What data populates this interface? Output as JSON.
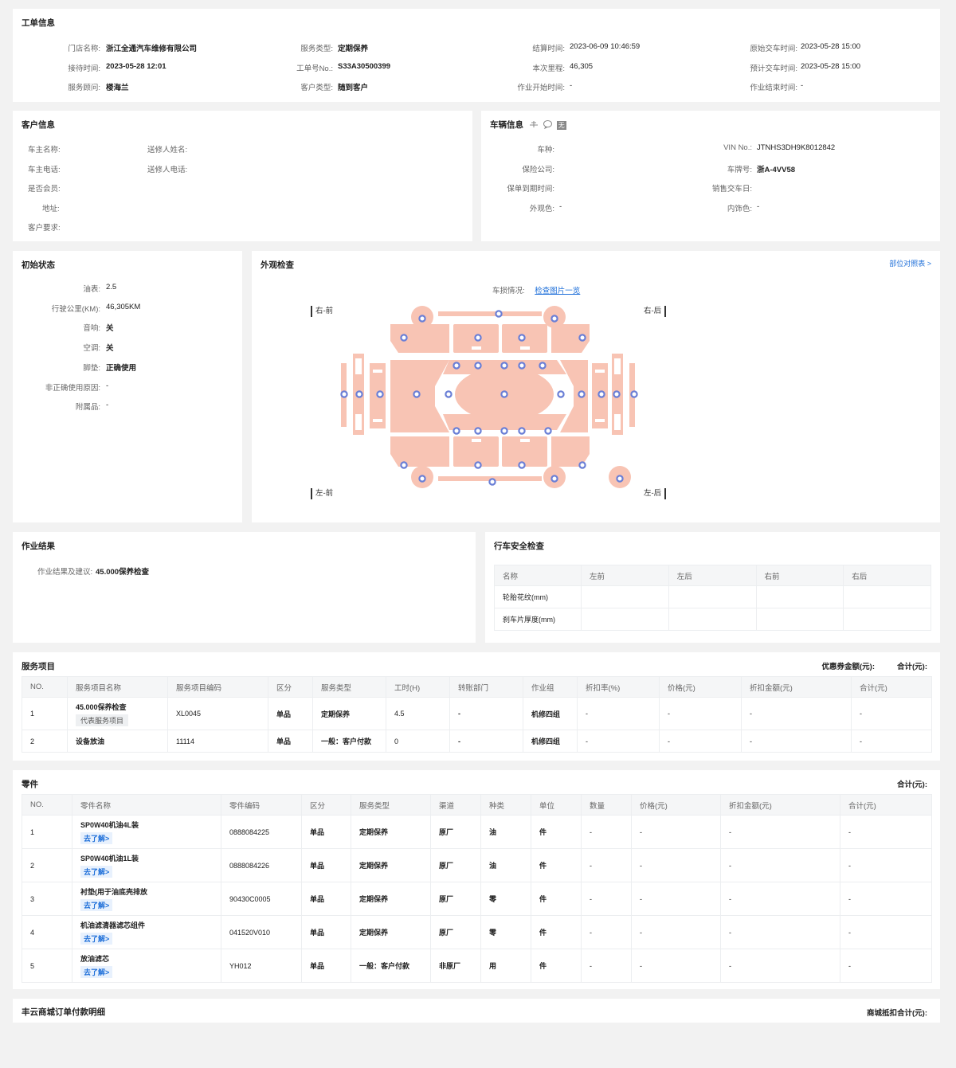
{
  "work_order": {
    "title": "工单信息",
    "fields": [
      {
        "label": "门店名称:",
        "value": "浙江全通汽车维修有限公司"
      },
      {
        "label": "服务类型:",
        "value": "定期保养"
      },
      {
        "label": "结算时间:",
        "value": "2023-06-09 10:46:59"
      },
      {
        "label": "原始交车时间:",
        "value": "2023-05-28 15:00"
      },
      {
        "label": "接待时间:",
        "value": "2023-05-28 12:01"
      },
      {
        "label": "工单号No.:",
        "value": "S33A30500399"
      },
      {
        "label": "本次里程:",
        "value": "46,305"
      },
      {
        "label": "预计交车时间:",
        "value": "2023-05-28 15:00"
      },
      {
        "label": "服务顾问:",
        "value": "楼海兰"
      },
      {
        "label": "客户类型:",
        "value": "随到客户"
      },
      {
        "label": "作业开始时间:",
        "value": "-"
      },
      {
        "label": "作业结束时间:",
        "value": "-"
      }
    ]
  },
  "customer": {
    "title": "客户信息",
    "fields": [
      {
        "label": "车主名称:",
        "value": ""
      },
      {
        "label": "送修人姓名:",
        "value": ""
      },
      {
        "label": "车主电话:",
        "value": ""
      },
      {
        "label": "送修人电话:",
        "value": ""
      },
      {
        "label": "是否会员:",
        "value": ""
      },
      {
        "label": "地址:",
        "value": ""
      },
      {
        "label": "客户要求:",
        "value": ""
      }
    ]
  },
  "vehicle": {
    "title": "车辆信息",
    "badge": "无",
    "fields": [
      {
        "label": "车种:",
        "value": ""
      },
      {
        "label": "VIN No.:",
        "value": "JTNHS3DH9K8012842"
      },
      {
        "label": "保险公司:",
        "value": ""
      },
      {
        "label": "车牌号:",
        "value": "浙A-4VV58"
      },
      {
        "label": "保单到期时间:",
        "value": ""
      },
      {
        "label": "销售交车日:",
        "value": ""
      },
      {
        "label": "外观色:",
        "value": "-"
      },
      {
        "label": "内饰色:",
        "value": "-"
      }
    ]
  },
  "initial_state": {
    "title": "初始状态",
    "fields": [
      {
        "label": "油表:",
        "value": "2.5"
      },
      {
        "label": "行驶公里(KM):",
        "value": "46,305KM"
      },
      {
        "label": "音响:",
        "value": "关"
      },
      {
        "label": "空调:",
        "value": "关"
      },
      {
        "label": "脚垫:",
        "value": "正确使用"
      },
      {
        "label": "非正确使用原因:",
        "value": "-"
      },
      {
        "label": "附属品:",
        "value": "-"
      }
    ]
  },
  "appearance": {
    "title": "外观检查",
    "legend_link": "部位对照表 >",
    "damage_label": "车损情况:",
    "damage_link": "检查图片一览",
    "corners": {
      "fr": "右-前",
      "rr": "右-后",
      "fl": "左-前",
      "rl": "左-后"
    }
  },
  "result": {
    "title": "作业结果",
    "label": "作业结果及建议:",
    "value": "45.000保养检查"
  },
  "safety": {
    "title": "行车安全检查",
    "headers": [
      "名称",
      "左前",
      "左后",
      "右前",
      "右后"
    ],
    "rows": [
      [
        "轮胎花纹(mm)",
        "",
        "",
        "",
        ""
      ],
      [
        "刹车片厚度(mm)",
        "",
        "",
        "",
        ""
      ]
    ]
  },
  "services": {
    "title": "服务项目",
    "coupon_label": "优惠券金额(元):",
    "total_label": "合计(元):",
    "headers": [
      "NO.",
      "服务项目名称",
      "服务项目编码",
      "区分",
      "服务类型",
      "工时(H)",
      "转账部门",
      "作业组",
      "折扣率(%)",
      "价格(元)",
      "折扣金额(元)",
      "合计(元)"
    ],
    "rows": [
      {
        "no": "1",
        "name": "45.000保养检查",
        "tag": "代表服务项目",
        "code": "XL0045",
        "kind": "单品",
        "type": "定期保养",
        "hours": "4.5",
        "dept": "-",
        "group": "机修四组",
        "rate": "-",
        "price": "-",
        "disc": "-",
        "total": "-"
      },
      {
        "no": "2",
        "name": "设备放油",
        "tag": "",
        "code": "11114",
        "kind": "单品",
        "type": "一般：客户付款",
        "hours": "0",
        "dept": "-",
        "group": "机修四组",
        "rate": "-",
        "price": "-",
        "disc": "-",
        "total": "-"
      }
    ]
  },
  "parts": {
    "title": "零件",
    "total_label": "合计(元):",
    "headers": [
      "NO.",
      "零件名称",
      "零件编码",
      "区分",
      "服务类型",
      "渠道",
      "种类",
      "单位",
      "数量",
      "价格(元)",
      "折扣金额(元)",
      "合计(元)"
    ],
    "learn_more": "去了解>",
    "rows": [
      {
        "no": "1",
        "name": "SP0W40机油4L装",
        "code": "0888084225",
        "kind": "单品",
        "type": "定期保养",
        "channel": "原厂",
        "cat": "油",
        "unit": "件",
        "qty": "-",
        "price": "-",
        "disc": "-",
        "total": "-"
      },
      {
        "no": "2",
        "name": "SP0W40机油1L装",
        "code": "0888084226",
        "kind": "单品",
        "type": "定期保养",
        "channel": "原厂",
        "cat": "油",
        "unit": "件",
        "qty": "-",
        "price": "-",
        "disc": "-",
        "total": "-"
      },
      {
        "no": "3",
        "name": "衬垫(用于油底壳排放",
        "code": "90430C0005",
        "kind": "单品",
        "type": "定期保养",
        "channel": "原厂",
        "cat": "零",
        "unit": "件",
        "qty": "-",
        "price": "-",
        "disc": "-",
        "total": "-"
      },
      {
        "no": "4",
        "name": "机油滤清器滤芯组件",
        "code": "041520V010",
        "kind": "单品",
        "type": "定期保养",
        "channel": "原厂",
        "cat": "零",
        "unit": "件",
        "qty": "-",
        "price": "-",
        "disc": "-",
        "total": "-"
      },
      {
        "no": "5",
        "name": "放油滤芯",
        "code": "YH012",
        "kind": "单品",
        "type": "一般：客户付款",
        "channel": "非原厂",
        "cat": "用",
        "unit": "件",
        "qty": "-",
        "price": "-",
        "disc": "-",
        "total": "-"
      }
    ]
  },
  "mall": {
    "title": "丰云商城订单付款明细",
    "total_label": "商城抵扣合计(元):"
  }
}
